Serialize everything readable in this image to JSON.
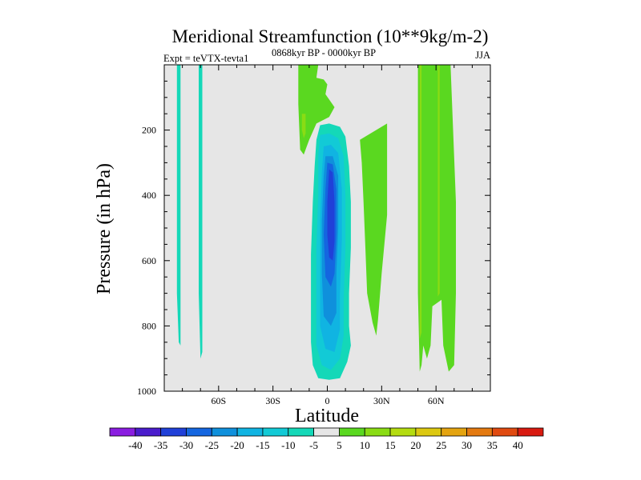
{
  "chart_data": {
    "type": "heatmap",
    "title": "Meridional Streamfunction (10**9kg/m-2)",
    "subtitle": "0868kyr BP - 0000kyr BP",
    "left_label": "Expt = teVTX-tevta1",
    "right_label": "JJA",
    "xlabel": "Latitude",
    "ylabel": "Pressure (in hPa)",
    "xlim": [
      -90,
      90
    ],
    "ylim": [
      1000,
      0
    ],
    "x_ticks": [
      {
        "value": -60,
        "label": "60S"
      },
      {
        "value": -30,
        "label": "30S"
      },
      {
        "value": 0,
        "label": "0"
      },
      {
        "value": 30,
        "label": "30N"
      },
      {
        "value": 60,
        "label": "60N"
      }
    ],
    "y_ticks": [
      {
        "value": 200,
        "label": "200"
      },
      {
        "value": 400,
        "label": "400"
      },
      {
        "value": 600,
        "label": "600"
      },
      {
        "value": 800,
        "label": "800"
      },
      {
        "value": 1000,
        "label": "1000"
      }
    ],
    "background_color": "#e6e6e6",
    "colorbar": {
      "levels": [
        "-40",
        "-35",
        "-30",
        "-25",
        "-20",
        "-15",
        "-10",
        "-5",
        "5",
        "10",
        "15",
        "20",
        "25",
        "30",
        "35",
        "40"
      ],
      "colors": [
        "#8a1de0",
        "#4a1ccc",
        "#2040d8",
        "#1466e0",
        "#0f90dc",
        "#10b4e2",
        "#12cad6",
        "#14d8b8",
        "#e6e6e6",
        "#5ad820",
        "#8adc14",
        "#b4dc10",
        "#dcc810",
        "#e4a410",
        "#e47a10",
        "#e04a10",
        "#d81a10"
      ]
    },
    "regions": [
      {
        "name": "sh-polar-band-1",
        "value": -7,
        "points": [
          [
            -83,
            0
          ],
          [
            -81,
            0
          ],
          [
            -81,
            860
          ],
          [
            -82,
            850
          ],
          [
            -83,
            700
          ]
        ]
      },
      {
        "name": "sh-polar-band-2",
        "value": -7,
        "points": [
          [
            -71,
            0
          ],
          [
            -69,
            0
          ],
          [
            -69,
            880
          ],
          [
            -70,
            900
          ],
          [
            -71,
            700
          ]
        ]
      },
      {
        "name": "tropical-cell-outer",
        "value": -7,
        "points": [
          [
            -4,
            185
          ],
          [
            1,
            180
          ],
          [
            7,
            190
          ],
          [
            10,
            220
          ],
          [
            12,
            310
          ],
          [
            13,
            420
          ],
          [
            13,
            560
          ],
          [
            12,
            700
          ],
          [
            12,
            800
          ],
          [
            13,
            860
          ],
          [
            11,
            910
          ],
          [
            7,
            960
          ],
          [
            1,
            965
          ],
          [
            -5,
            960
          ],
          [
            -8,
            920
          ],
          [
            -9,
            850
          ],
          [
            -9,
            720
          ],
          [
            -9,
            580
          ],
          [
            -8,
            420
          ],
          [
            -7,
            310
          ],
          [
            -6,
            230
          ]
        ]
      },
      {
        "name": "tropical-cell-12",
        "value": -12,
        "points": [
          [
            -4,
            215
          ],
          [
            1,
            210
          ],
          [
            6,
            225
          ],
          [
            9,
            280
          ],
          [
            10,
            400
          ],
          [
            10,
            560
          ],
          [
            9,
            720
          ],
          [
            9,
            830
          ],
          [
            7,
            900
          ],
          [
            2,
            935
          ],
          [
            -3,
            920
          ],
          [
            -6,
            860
          ],
          [
            -6,
            720
          ],
          [
            -6,
            560
          ],
          [
            -5,
            400
          ],
          [
            -5,
            280
          ]
        ]
      },
      {
        "name": "tropical-cell-17",
        "value": -17,
        "points": [
          [
            -2,
            250
          ],
          [
            2,
            245
          ],
          [
            6,
            270
          ],
          [
            8,
            380
          ],
          [
            8,
            540
          ],
          [
            7,
            700
          ],
          [
            7,
            810
          ],
          [
            4,
            880
          ],
          [
            -1,
            870
          ],
          [
            -4,
            800
          ],
          [
            -4,
            640
          ],
          [
            -4,
            480
          ],
          [
            -3,
            330
          ]
        ]
      },
      {
        "name": "tropical-cell-22",
        "value": -22,
        "points": [
          [
            -1,
            280
          ],
          [
            3,
            280
          ],
          [
            6,
            340
          ],
          [
            6,
            500
          ],
          [
            5,
            640
          ],
          [
            5,
            760
          ],
          [
            2,
            800
          ],
          [
            -2,
            770
          ],
          [
            -3,
            640
          ],
          [
            -3,
            480
          ],
          [
            -2,
            340
          ]
        ]
      },
      {
        "name": "tropical-cell-27",
        "value": -27,
        "points": [
          [
            0,
            300
          ],
          [
            3,
            305
          ],
          [
            5,
            380
          ],
          [
            5,
            520
          ],
          [
            4,
            640
          ],
          [
            2,
            680
          ],
          [
            -1,
            650
          ],
          [
            -2,
            520
          ],
          [
            -1,
            380
          ]
        ]
      },
      {
        "name": "tropical-cell-32",
        "value": -32,
        "points": [
          [
            1,
            320
          ],
          [
            3,
            330
          ],
          [
            4,
            420
          ],
          [
            4,
            540
          ],
          [
            3,
            600
          ],
          [
            1,
            590
          ],
          [
            0,
            520
          ],
          [
            0,
            420
          ]
        ]
      },
      {
        "name": "nh-subtropic-band",
        "value": 7,
        "points": [
          [
            18,
            230
          ],
          [
            33,
            180
          ],
          [
            33,
            460
          ],
          [
            30,
            640
          ],
          [
            28,
            780
          ],
          [
            27,
            830
          ],
          [
            25,
            790
          ],
          [
            22,
            700
          ],
          [
            21,
            560
          ],
          [
            20,
            420
          ],
          [
            19,
            300
          ]
        ]
      },
      {
        "name": "upper-trop-positive",
        "value": 7,
        "points": [
          [
            -16,
            0
          ],
          [
            -5,
            0
          ],
          [
            -6,
            40
          ],
          [
            -2,
            45
          ],
          [
            0,
            60
          ],
          [
            -1,
            90
          ],
          [
            4,
            130
          ],
          [
            1,
            160
          ],
          [
            -6,
            180
          ],
          [
            -10,
            230
          ],
          [
            -13,
            275
          ],
          [
            -15,
            260
          ],
          [
            -16,
            120
          ]
        ]
      },
      {
        "name": "upper-trop-core",
        "value": 12,
        "points": [
          [
            -14,
            150
          ],
          [
            -12,
            150
          ],
          [
            -12,
            210
          ],
          [
            -13,
            225
          ],
          [
            -14,
            200
          ]
        ]
      },
      {
        "name": "nh-midlat-band",
        "value": 7,
        "points": [
          [
            50,
            0
          ],
          [
            68,
            0
          ],
          [
            71,
            420
          ],
          [
            71,
            700
          ],
          [
            70,
            920
          ],
          [
            67,
            940
          ],
          [
            64,
            860
          ],
          [
            63,
            720
          ],
          [
            58,
            740
          ],
          [
            57,
            860
          ],
          [
            55,
            900
          ],
          [
            53,
            860
          ],
          [
            52,
            920
          ],
          [
            51,
            940
          ],
          [
            50,
            700
          ]
        ]
      },
      {
        "name": "nh-midlat-core-a",
        "value": 12,
        "points": [
          [
            51,
            0
          ],
          [
            52,
            0
          ],
          [
            52,
            820
          ],
          [
            51,
            840
          ]
        ]
      },
      {
        "name": "nh-midlat-core-b",
        "value": 12,
        "points": [
          [
            61,
            0
          ],
          [
            62,
            0
          ],
          [
            62,
            700
          ],
          [
            61,
            710
          ]
        ]
      }
    ]
  }
}
